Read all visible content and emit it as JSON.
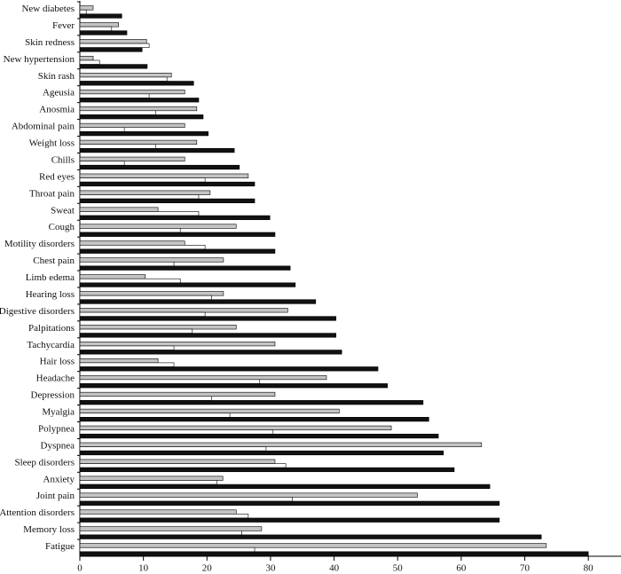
{
  "chart_data": {
    "type": "bar",
    "orientation": "horizontal",
    "categories": [
      "New diabetes",
      "Fever",
      "Skin redness",
      "New hypertension",
      "Skin rash",
      "Ageusia",
      "Anosmia",
      "Abdominal pain",
      "Weight loss",
      "Chills",
      "Red eyes",
      "Throat pain",
      "Sweat",
      "Cough",
      "Motility disorders",
      "Chest pain",
      "Limb edema",
      "Hearing loss",
      "Digestive disorders",
      "Palpitations",
      "Tachycardia",
      "Hair loss",
      "Headache",
      "Depression",
      "Myalgia",
      "Polypnea",
      "Dyspnea",
      "Sleep disorders",
      "Anxiety",
      "Joint pain",
      "Attention disorders",
      "Memory loss",
      "Fatigue"
    ],
    "series": [
      {
        "color": "#c4c4c4",
        "values": [
          2.1,
          6.1,
          10.5,
          2.1,
          14.4,
          16.5,
          18.4,
          16.5,
          18.4,
          16.5,
          26.5,
          20.5,
          12.3,
          24.6,
          16.5,
          22.6,
          10.3,
          22.6,
          32.7,
          24.6,
          30.7,
          12.3,
          38.8,
          30.7,
          40.8,
          49.0,
          63.2,
          30.7,
          22.5,
          53.1,
          24.6,
          28.6,
          73.4
        ]
      },
      {
        "color": "#ffffff",
        "values": [
          1.0,
          5.0,
          10.9,
          3.1,
          13.7,
          10.9,
          11.9,
          7.0,
          11.9,
          7.0,
          19.7,
          18.7,
          18.7,
          15.8,
          19.7,
          14.8,
          15.8,
          20.7,
          19.7,
          17.7,
          14.8,
          14.8,
          28.3,
          20.7,
          23.6,
          30.4,
          29.3,
          32.4,
          21.6,
          33.4,
          26.5,
          25.5,
          27.5
        ]
      },
      {
        "color": "#111111",
        "values": [
          6.6,
          7.4,
          9.8,
          10.6,
          17.9,
          18.7,
          19.4,
          20.2,
          24.3,
          25.1,
          27.5,
          27.5,
          29.9,
          30.7,
          30.7,
          33.1,
          33.9,
          37.1,
          40.3,
          40.3,
          41.2,
          46.9,
          48.4,
          54.0,
          54.9,
          56.4,
          57.2,
          58.9,
          64.5,
          66.0,
          66.0,
          72.6,
          80.0
        ]
      }
    ],
    "xlim": [
      0,
      85
    ],
    "xticks": [
      0,
      10,
      20,
      30,
      40,
      50,
      60,
      70,
      80
    ]
  }
}
